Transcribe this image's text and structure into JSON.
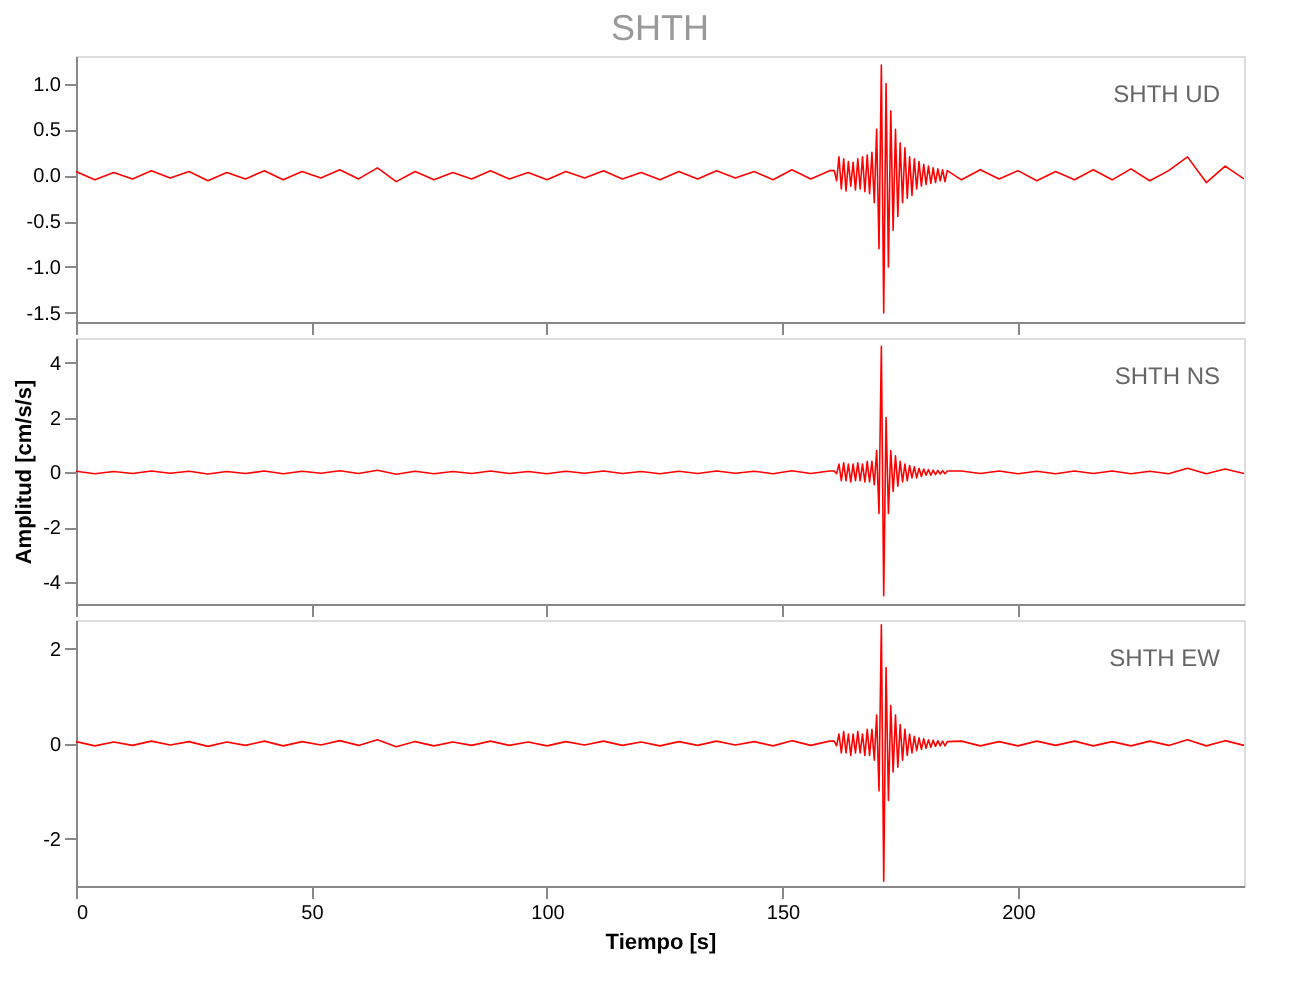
{
  "chart_data": [
    {
      "type": "line",
      "title": "SHTH",
      "annotations": [
        "SHTH UD"
      ],
      "tick_labels": "y",
      "grid": false,
      "x": [
        0,
        4,
        8,
        12,
        16,
        20,
        24,
        28,
        32,
        36,
        40,
        44,
        48,
        52,
        56,
        60,
        64,
        68,
        72,
        76,
        80,
        84,
        88,
        92,
        96,
        100,
        104,
        108,
        112,
        116,
        120,
        124,
        128,
        132,
        136,
        140,
        144,
        148,
        152,
        156,
        160,
        161,
        161.5,
        162,
        162.5,
        163,
        163.5,
        164,
        164.5,
        165,
        165.5,
        166,
        166.5,
        167,
        167.5,
        168,
        168.5,
        169,
        169.5,
        170,
        170.5,
        171,
        171.5,
        172,
        172.5,
        173,
        173.5,
        174,
        174.5,
        175,
        175.5,
        176,
        176.5,
        177,
        177.5,
        178,
        178.5,
        179,
        179.5,
        180,
        180.5,
        181,
        181.5,
        182,
        182.5,
        183,
        183.5,
        184,
        184.5,
        185,
        188,
        192,
        196,
        200,
        204,
        208,
        212,
        216,
        220,
        224,
        228,
        232,
        236,
        240,
        244,
        248
      ],
      "xlim": [
        0,
        248
      ],
      "xticks": [
        0,
        50,
        100,
        150,
        200
      ],
      "ylim": [
        -1.6,
        1.3
      ],
      "yticks": [
        {
          "value": -1.5,
          "label": "-1.5"
        },
        {
          "value": -1,
          "label": "-1.0"
        },
        {
          "value": -0.5,
          "label": "-0.5"
        },
        {
          "value": 0,
          "label": "0.0"
        },
        {
          "value": 0.5,
          "label": "0.5"
        },
        {
          "value": 1,
          "label": "1.0"
        }
      ],
      "series": [
        {
          "color": "#ff0000",
          "values": [
            0.04,
            -0.05,
            0.03,
            -0.04,
            0.05,
            -0.03,
            0.04,
            -0.06,
            0.03,
            -0.04,
            0.05,
            -0.05,
            0.04,
            -0.03,
            0.06,
            -0.04,
            0.08,
            -0.07,
            0.04,
            -0.05,
            0.03,
            -0.04,
            0.05,
            -0.04,
            0.03,
            -0.05,
            0.04,
            -0.03,
            0.05,
            -0.04,
            0.03,
            -0.05,
            0.04,
            -0.04,
            0.05,
            -0.03,
            0.04,
            -0.05,
            0.06,
            -0.04,
            0.05,
            0.05,
            -0.06,
            0.2,
            -0.15,
            0.18,
            -0.17,
            0.15,
            -0.12,
            0.14,
            -0.16,
            0.18,
            -0.15,
            0.2,
            -0.18,
            0.22,
            -0.2,
            0.25,
            -0.3,
            0.5,
            -0.8,
            1.2,
            -1.5,
            1.0,
            -1.0,
            0.7,
            -0.6,
            0.5,
            -0.45,
            0.35,
            -0.3,
            0.3,
            -0.25,
            0.2,
            -0.22,
            0.18,
            -0.15,
            0.15,
            -0.12,
            0.12,
            -0.1,
            0.1,
            -0.09,
            0.08,
            -0.08,
            0.07,
            -0.06,
            0.06,
            -0.07,
            0.05,
            -0.05,
            0.06,
            -0.04,
            0.05,
            -0.06,
            0.04,
            -0.05,
            0.06,
            -0.05,
            0.07,
            -0.06,
            0.05,
            0.2,
            -0.08,
            0.1,
            -0.04
          ]
        }
      ]
    },
    {
      "type": "line",
      "annotations": [
        "SHTH NS"
      ],
      "tick_labels": "y",
      "grid": false,
      "ylabel": "Amplitud [cm/s/s]",
      "x": [
        0,
        4,
        8,
        12,
        16,
        20,
        24,
        28,
        32,
        36,
        40,
        44,
        48,
        52,
        56,
        60,
        64,
        68,
        72,
        76,
        80,
        84,
        88,
        92,
        96,
        100,
        104,
        108,
        112,
        116,
        120,
        124,
        128,
        132,
        136,
        140,
        144,
        148,
        152,
        156,
        160,
        161,
        161.5,
        162,
        162.5,
        163,
        163.5,
        164,
        164.5,
        165,
        165.5,
        166,
        166.5,
        167,
        167.5,
        168,
        168.5,
        169,
        169.5,
        170,
        170.5,
        171,
        171.5,
        172,
        172.5,
        173,
        173.5,
        174,
        174.5,
        175,
        175.5,
        176,
        176.5,
        177,
        177.5,
        178,
        178.5,
        179,
        179.5,
        180,
        180.5,
        181,
        181.5,
        182,
        182.5,
        183,
        183.5,
        184,
        184.5,
        185,
        188,
        192,
        196,
        200,
        204,
        208,
        212,
        216,
        220,
        224,
        228,
        232,
        236,
        240,
        244,
        248
      ],
      "xlim": [
        0,
        248
      ],
      "xticks": [
        0,
        50,
        100,
        150,
        200
      ],
      "ylim": [
        -4.8,
        4.9
      ],
      "yticks": [
        -4,
        -2,
        0,
        2,
        4
      ],
      "series": [
        {
          "color": "#ff0000",
          "values": [
            0.04,
            -0.05,
            0.03,
            -0.04,
            0.05,
            -0.03,
            0.04,
            -0.06,
            0.03,
            -0.04,
            0.05,
            -0.05,
            0.04,
            -0.03,
            0.06,
            -0.04,
            0.08,
            -0.07,
            0.04,
            -0.05,
            0.03,
            -0.04,
            0.05,
            -0.04,
            0.03,
            -0.05,
            0.04,
            -0.03,
            0.05,
            -0.04,
            0.03,
            -0.05,
            0.04,
            -0.04,
            0.05,
            -0.03,
            0.04,
            -0.05,
            0.06,
            -0.04,
            0.05,
            0.05,
            -0.05,
            0.3,
            -0.3,
            0.35,
            -0.3,
            0.3,
            -0.35,
            0.3,
            -0.3,
            0.35,
            -0.3,
            0.3,
            -0.35,
            0.4,
            -0.35,
            0.4,
            -0.45,
            0.8,
            -1.5,
            4.6,
            -4.5,
            2.0,
            -1.5,
            0.8,
            -0.7,
            0.6,
            -0.5,
            0.4,
            -0.35,
            0.3,
            -0.3,
            0.25,
            -0.2,
            0.2,
            -0.2,
            0.15,
            -0.15,
            0.12,
            -0.1,
            0.1,
            -0.1,
            0.08,
            -0.08,
            0.07,
            -0.06,
            0.06,
            -0.05,
            0.05,
            0.05,
            -0.04,
            0.05,
            -0.05,
            0.04,
            -0.05,
            0.05,
            -0.04,
            0.05,
            -0.05,
            0.04,
            -0.05,
            0.15,
            -0.05,
            0.12,
            -0.04
          ]
        }
      ]
    },
    {
      "type": "line",
      "annotations": [
        "SHTH EW"
      ],
      "grid": false,
      "xlabel": "Tiempo [s]",
      "x": [
        0,
        4,
        8,
        12,
        16,
        20,
        24,
        28,
        32,
        36,
        40,
        44,
        48,
        52,
        56,
        60,
        64,
        68,
        72,
        76,
        80,
        84,
        88,
        92,
        96,
        100,
        104,
        108,
        112,
        116,
        120,
        124,
        128,
        132,
        136,
        140,
        144,
        148,
        152,
        156,
        160,
        161,
        161.5,
        162,
        162.5,
        163,
        163.5,
        164,
        164.5,
        165,
        165.5,
        166,
        166.5,
        167,
        167.5,
        168,
        168.5,
        169,
        169.5,
        170,
        170.5,
        171,
        171.5,
        172,
        172.5,
        173,
        173.5,
        174,
        174.5,
        175,
        175.5,
        176,
        176.5,
        177,
        177.5,
        178,
        178.5,
        179,
        179.5,
        180,
        180.5,
        181,
        181.5,
        182,
        182.5,
        183,
        183.5,
        184,
        184.5,
        185,
        188,
        192,
        196,
        200,
        204,
        208,
        212,
        216,
        220,
        224,
        228,
        232,
        236,
        240,
        244,
        248
      ],
      "xlim": [
        0,
        248
      ],
      "xticks": [
        0,
        50,
        100,
        150,
        200
      ],
      "ylim": [
        -3.0,
        2.6
      ],
      "yticks": [
        -2,
        0,
        2
      ],
      "series": [
        {
          "color": "#ff0000",
          "values": [
            0.04,
            -0.05,
            0.03,
            -0.04,
            0.05,
            -0.03,
            0.04,
            -0.06,
            0.03,
            -0.04,
            0.05,
            -0.05,
            0.04,
            -0.03,
            0.06,
            -0.04,
            0.08,
            -0.07,
            0.04,
            -0.05,
            0.03,
            -0.04,
            0.05,
            -0.04,
            0.03,
            -0.05,
            0.04,
            -0.03,
            0.05,
            -0.04,
            0.03,
            -0.05,
            0.04,
            -0.04,
            0.05,
            -0.03,
            0.04,
            -0.05,
            0.06,
            -0.04,
            0.05,
            0.05,
            -0.05,
            0.2,
            -0.2,
            0.25,
            -0.2,
            0.2,
            -0.25,
            0.2,
            -0.2,
            0.25,
            -0.2,
            0.2,
            -0.25,
            0.3,
            -0.25,
            0.3,
            -0.35,
            0.6,
            -1.0,
            2.5,
            -2.9,
            1.6,
            -1.2,
            0.8,
            -0.6,
            0.6,
            -0.5,
            0.4,
            -0.35,
            0.3,
            -0.25,
            0.2,
            -0.2,
            0.15,
            -0.15,
            0.12,
            -0.12,
            0.1,
            -0.1,
            0.08,
            -0.08,
            0.07,
            -0.06,
            0.06,
            -0.05,
            0.05,
            -0.05,
            0.04,
            0.05,
            -0.05,
            0.04,
            -0.05,
            0.05,
            -0.04,
            0.05,
            -0.05,
            0.04,
            -0.05,
            0.05,
            -0.04,
            0.08,
            -0.05,
            0.06,
            -0.04
          ]
        }
      ]
    }
  ]
}
